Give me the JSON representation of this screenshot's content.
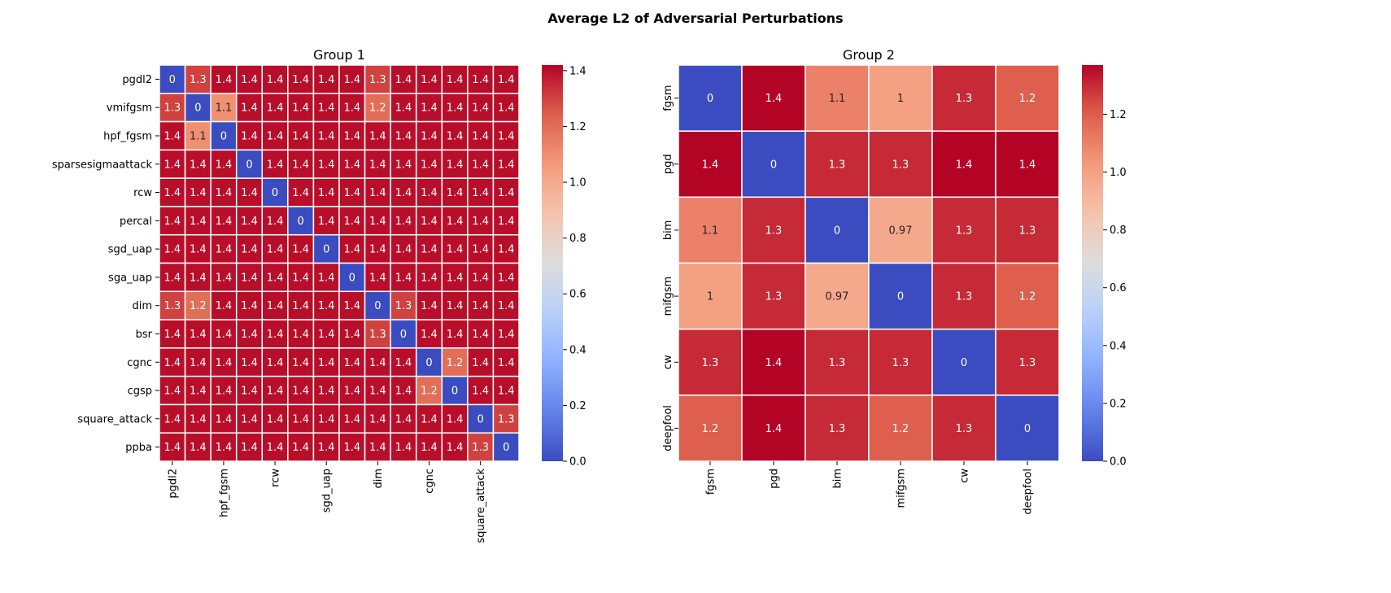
{
  "figure_title": "Average L2 of Adversarial Perturbations",
  "chart_data": [
    {
      "type": "heatmap",
      "title": "Group 1",
      "row_labels": [
        "pgdl2",
        "vmifgsm",
        "hpf_fgsm",
        "sparsesigmaattack",
        "rcw",
        "percal",
        "sgd_uap",
        "sga_uap",
        "dim",
        "bsr",
        "cgnc",
        "cgsp",
        "square_attack",
        "ppba"
      ],
      "col_tick_labels": [
        "pgdl2",
        "",
        "hpf_fgsm",
        "",
        "rcw",
        "",
        "sgd_uap",
        "",
        "dim",
        "",
        "cgnc",
        "",
        "square_attack",
        ""
      ],
      "values": [
        [
          0,
          1.3,
          1.4,
          1.4,
          1.4,
          1.4,
          1.4,
          1.4,
          1.3,
          1.4,
          1.4,
          1.4,
          1.4,
          1.4
        ],
        [
          1.3,
          0,
          1.1,
          1.4,
          1.4,
          1.4,
          1.4,
          1.4,
          1.2,
          1.4,
          1.4,
          1.4,
          1.4,
          1.4
        ],
        [
          1.4,
          1.1,
          0,
          1.4,
          1.4,
          1.4,
          1.4,
          1.4,
          1.4,
          1.4,
          1.4,
          1.4,
          1.4,
          1.4
        ],
        [
          1.4,
          1.4,
          1.4,
          0,
          1.4,
          1.4,
          1.4,
          1.4,
          1.4,
          1.4,
          1.4,
          1.4,
          1.4,
          1.4
        ],
        [
          1.4,
          1.4,
          1.4,
          1.4,
          0,
          1.4,
          1.4,
          1.4,
          1.4,
          1.4,
          1.4,
          1.4,
          1.4,
          1.4
        ],
        [
          1.4,
          1.4,
          1.4,
          1.4,
          1.4,
          0,
          1.4,
          1.4,
          1.4,
          1.4,
          1.4,
          1.4,
          1.4,
          1.4
        ],
        [
          1.4,
          1.4,
          1.4,
          1.4,
          1.4,
          1.4,
          0,
          1.4,
          1.4,
          1.4,
          1.4,
          1.4,
          1.4,
          1.4
        ],
        [
          1.4,
          1.4,
          1.4,
          1.4,
          1.4,
          1.4,
          1.4,
          0,
          1.4,
          1.4,
          1.4,
          1.4,
          1.4,
          1.4
        ],
        [
          1.3,
          1.2,
          1.4,
          1.4,
          1.4,
          1.4,
          1.4,
          1.4,
          0,
          1.3,
          1.4,
          1.4,
          1.4,
          1.4
        ],
        [
          1.4,
          1.4,
          1.4,
          1.4,
          1.4,
          1.4,
          1.4,
          1.4,
          1.3,
          0,
          1.4,
          1.4,
          1.4,
          1.4
        ],
        [
          1.4,
          1.4,
          1.4,
          1.4,
          1.4,
          1.4,
          1.4,
          1.4,
          1.4,
          1.4,
          0,
          1.2,
          1.4,
          1.4
        ],
        [
          1.4,
          1.4,
          1.4,
          1.4,
          1.4,
          1.4,
          1.4,
          1.4,
          1.4,
          1.4,
          1.2,
          0,
          1.4,
          1.4
        ],
        [
          1.4,
          1.4,
          1.4,
          1.4,
          1.4,
          1.4,
          1.4,
          1.4,
          1.4,
          1.4,
          1.4,
          1.4,
          0,
          1.3
        ],
        [
          1.4,
          1.4,
          1.4,
          1.4,
          1.4,
          1.4,
          1.4,
          1.4,
          1.4,
          1.4,
          1.4,
          1.4,
          1.3,
          0
        ]
      ],
      "colormap": "coolwarm",
      "vmin": 0,
      "vmax": 1.42,
      "colorbar_ticks": [
        0.0,
        0.2,
        0.4,
        0.6,
        0.8,
        1.0,
        1.2,
        1.4
      ],
      "colorbar_tick_labels": [
        "0.0",
        "0.2",
        "0.4",
        "0.6",
        "0.8",
        "1.0",
        "1.2",
        "1.4"
      ]
    },
    {
      "type": "heatmap",
      "title": "Group 2",
      "row_labels": [
        "fgsm",
        "pgd",
        "bim",
        "mifgsm",
        "cw",
        "deepfool"
      ],
      "col_tick_labels": [
        "fgsm",
        "pgd",
        "bim",
        "mifgsm",
        "cw",
        "deepfool"
      ],
      "values": [
        [
          0,
          1.4,
          1.1,
          1,
          1.3,
          1.2
        ],
        [
          1.4,
          0,
          1.3,
          1.3,
          1.4,
          1.4
        ],
        [
          1.1,
          1.3,
          0,
          0.97,
          1.3,
          1.3
        ],
        [
          1,
          1.3,
          0.97,
          0,
          1.3,
          1.2
        ],
        [
          1.3,
          1.4,
          1.3,
          1.3,
          0,
          1.3
        ],
        [
          1.2,
          1.4,
          1.3,
          1.2,
          1.3,
          0
        ]
      ],
      "colormap": "coolwarm",
      "vmin": 0,
      "vmax": 1.37,
      "colorbar_ticks": [
        0.0,
        0.2,
        0.4,
        0.6,
        0.8,
        1.0,
        1.2
      ],
      "colorbar_tick_labels": [
        "0.0",
        "0.2",
        "0.4",
        "0.6",
        "0.8",
        "1.0",
        "1.2"
      ]
    }
  ]
}
